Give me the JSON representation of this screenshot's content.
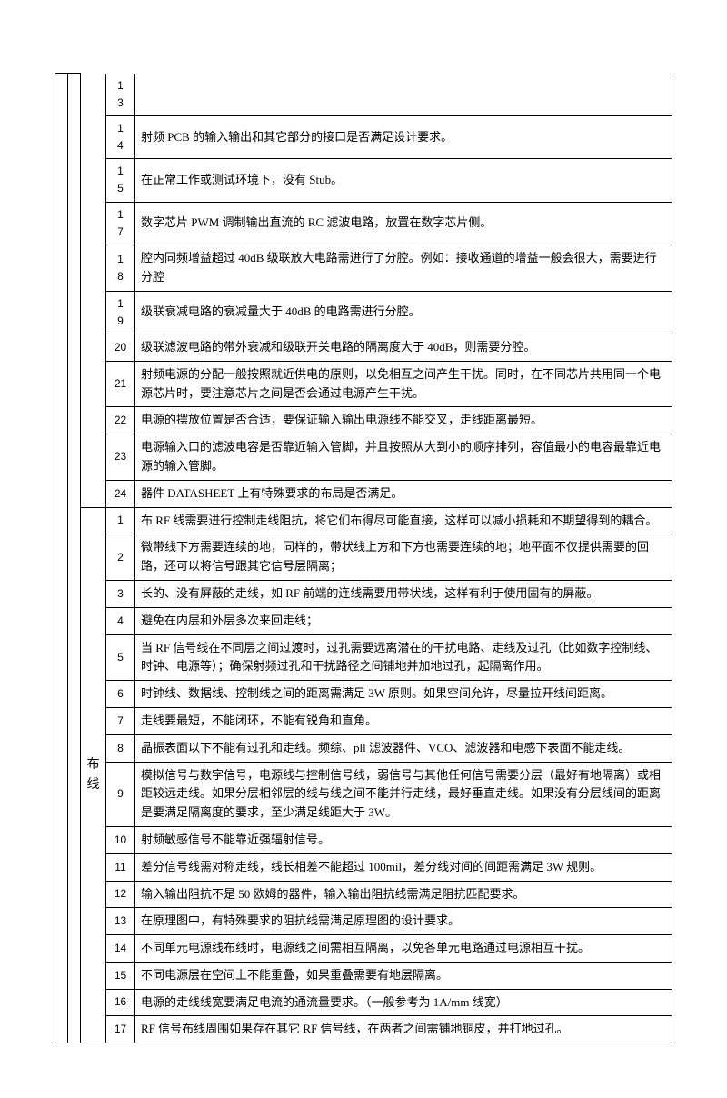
{
  "section1": {
    "category_label": "",
    "rows": [
      {
        "n": "13",
        "t": ""
      },
      {
        "n": "14",
        "t": "射频 PCB 的输入输出和其它部分的接口是否满足设计要求。"
      },
      {
        "n": "15",
        "t": "在正常工作或测试环境下，没有 Stub。"
      },
      {
        "n": "17",
        "t": "数字芯片 PWM 调制输出直流的 RC 滤波电路，放置在数字芯片侧。"
      },
      {
        "n": "18",
        "t": "腔内同频增益超过 40dB 级联放大电路需进行了分腔。例如：接收通道的增益一般会很大，需要进行分腔"
      },
      {
        "n": "19",
        "t": "级联衰减电路的衰减量大于 40dB 的电路需进行分腔。"
      },
      {
        "n": "20",
        "t": "级联滤波电路的带外衰减和级联开关电路的隔离度大于 40dB，则需要分腔。"
      },
      {
        "n": "21",
        "t": "射频电源的分配一般按照就近供电的原则，以免相互之间产生干扰。同时，在不同芯片共用同一个电源芯片时，要注意芯片之间是否会通过电源产生干扰。"
      },
      {
        "n": "22",
        "t": "电源的摆放位置是否合适，要保证输入输出电源线不能交叉，走线距离最短。"
      },
      {
        "n": "23",
        "t": "电源输入口的滤波电容是否靠近输入管脚，并且按照从大到小的顺序排列，容值最小的电容最靠近电源的输入管脚。"
      },
      {
        "n": "24",
        "t": "器件 DATASHEET 上有特殊要求的布局是否满足。"
      }
    ]
  },
  "section2": {
    "category_label": "布线",
    "rows": [
      {
        "n": "1",
        "t": "布 RF 线需要进行控制走线阻抗，将它们布得尽可能直接，这样可以减小损耗和不期望得到的耦合。"
      },
      {
        "n": "2",
        "t": "微带线下方需要连续的地，同样的，带状线上方和下方也需要连续的地；地平面不仅提供需要的回路，还可以将信号跟其它信号层隔离；"
      },
      {
        "n": "3",
        "t": "长的、没有屏蔽的走线，如 RF 前端的连线需要用带状线，这样有利于使用固有的屏蔽。"
      },
      {
        "n": "4",
        "t": "避免在内层和外层多次来回走线；"
      },
      {
        "n": "5",
        "t": "当 RF 信号线在不同层之间过渡时，过孔需要远离潜在的干扰电路、走线及过孔（比如数字控制线、时钟、电源等）；确保射频过孔和干扰路径之间铺地并加地过孔，起隔离作用。"
      },
      {
        "n": "6",
        "t": "时钟线、数据线、控制线之间的距离需满足 3W 原则。如果空间允许，尽量拉开线间距离。"
      },
      {
        "n": "7",
        "t": "走线要最短，不能闭环，不能有锐角和直角。"
      },
      {
        "n": "8",
        "t": "晶振表面以下不能有过孔和走线。频综、pll 滤波器件、VCO、滤波器和电感下表面不能走线。"
      },
      {
        "n": "9",
        "t": "模拟信号与数字信号，电源线与控制信号线，弱信号与其他任何信号需要分层（最好有地隔离）或相距较远走线。如果分层相邻层的线与线之间不能并行走线，最好垂直走线。如果没有分层线间的距离是要满足隔离度的要求，至少满足线距大于 3W。"
      },
      {
        "n": "10",
        "t": "射频敏感信号不能靠近强辐射信号。"
      },
      {
        "n": "11",
        "t": "差分信号线需对称走线，线长相差不能超过 100mil，差分线对间的间距需满足 3W 规则。"
      },
      {
        "n": "12",
        "t": "输入输出阻抗不是 50 欧姆的器件，输入输出阻抗线需满足阻抗匹配要求。"
      },
      {
        "n": "13",
        "t": "在原理图中，有特殊要求的阻抗线需满足原理图的设计要求。"
      },
      {
        "n": "14",
        "t": "不同单元电源线布线时，电源线之间需相互隔离，以免各单元电路通过电源相互干扰。"
      },
      {
        "n": "15",
        "t": "不同电源层在空间上不能重叠，如果重叠需要有地层隔离。"
      },
      {
        "n": "16",
        "t": "电源的走线线宽要满足电流的通流量要求。（一般参考为 1A/mm 线宽）"
      },
      {
        "n": "17",
        "t": "RF 信号布线周围如果存在其它 RF 信号线，在两者之间需铺地铜皮，并打地过孔。"
      }
    ]
  }
}
